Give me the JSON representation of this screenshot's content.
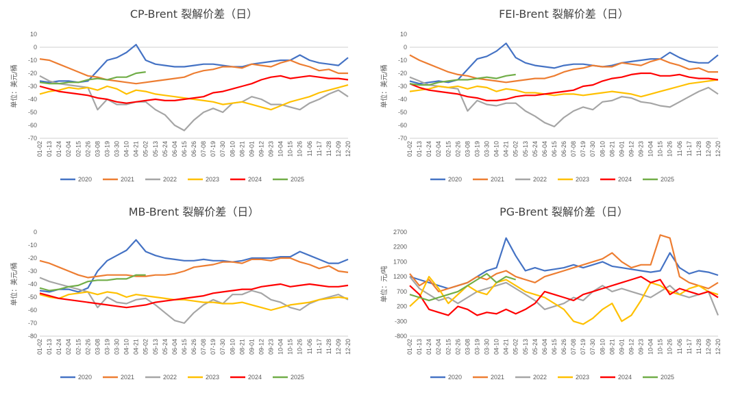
{
  "colors": {
    "2020": "#4472C4",
    "2021": "#ED7D31",
    "2022": "#A5A5A5",
    "2023": "#FFC000",
    "2024": "#FF0000",
    "2025": "#70AD47",
    "grid": "#D9D9D9",
    "axis": "#BFBFBF"
  },
  "legend": [
    "2020",
    "2021",
    "2022",
    "2023",
    "2024",
    "2025"
  ],
  "x_ticks": [
    "01-02",
    "01-13",
    "01-24",
    "02-04",
    "02-15",
    "02-26",
    "03-08",
    "03-19",
    "03-30",
    "04-10",
    "04-21",
    "05-02",
    "05-13",
    "05-24",
    "06-04",
    "06-15",
    "06-26",
    "07-08",
    "07-19",
    "07-30",
    "08-10",
    "08-21",
    "09-01",
    "09-12",
    "09-23",
    "10-04",
    "10-15",
    "10-26",
    "11-06",
    "11-17",
    "11-28",
    "12-09",
    "12-20"
  ],
  "chart_data": [
    {
      "type": "line",
      "title": "CP-Brent 裂解价差（日）",
      "ylabel": "单位：美元/桶",
      "ylim": [
        -70,
        10
      ],
      "yticks": [
        10,
        0,
        -10,
        -20,
        -30,
        -40,
        -50,
        -60,
        -70
      ],
      "categories_ref": "x_ticks",
      "series": [
        {
          "name": "2020",
          "values": [
            -26,
            -27,
            -26,
            -26,
            -27,
            -26,
            -18,
            -10,
            -8,
            -4,
            2,
            -10,
            -13,
            -14,
            -15,
            -15,
            -14,
            -13,
            -13,
            -14,
            -15,
            -15,
            -13,
            -12,
            -11,
            -10,
            -10,
            -6,
            -10,
            -12,
            -13,
            -14,
            -8
          ]
        },
        {
          "name": "2021",
          "values": [
            -9,
            -10,
            -13,
            -16,
            -19,
            -22,
            -23,
            -25,
            -26,
            -27,
            -28,
            -27,
            -26,
            -25,
            -24,
            -23,
            -20,
            -18,
            -17,
            -15,
            -15,
            -16,
            -13,
            -14,
            -15,
            -12,
            -10,
            -13,
            -15,
            -18,
            -17,
            -20,
            -20
          ]
        },
        {
          "name": "2022",
          "values": [
            -22,
            -26,
            -28,
            -29,
            -30,
            -31,
            -48,
            -40,
            -44,
            -44,
            -42,
            -42,
            -48,
            -52,
            -60,
            -64,
            -56,
            -50,
            -47,
            -50,
            -43,
            -42,
            -38,
            -40,
            -44,
            -44,
            -46,
            -48,
            -43,
            -40,
            -36,
            -33,
            -38
          ]
        },
        {
          "name": "2023",
          "values": [
            -36,
            -34,
            -33,
            -31,
            -32,
            -31,
            -33,
            -30,
            -32,
            -36,
            -33,
            -34,
            -36,
            -37,
            -38,
            -39,
            -40,
            -41,
            -42,
            -44,
            -43,
            -42,
            -44,
            -46,
            -48,
            -45,
            -42,
            -40,
            -38,
            -35,
            -33,
            -31,
            -29
          ]
        },
        {
          "name": "2024",
          "values": [
            -30,
            -32,
            -34,
            -35,
            -36,
            -37,
            -39,
            -40,
            -42,
            -43,
            -42,
            -41,
            -40,
            -41,
            -41,
            -40,
            -39,
            -38,
            -35,
            -34,
            -32,
            -30,
            -28,
            -25,
            -23,
            -22,
            -24,
            -23,
            -22,
            -23,
            -24,
            -24,
            -25
          ]
        },
        {
          "name": "2025",
          "values": [
            -27,
            -28,
            -28,
            -27,
            -27,
            -25,
            -24,
            -25,
            -23,
            -23,
            -20,
            -19
          ]
        }
      ]
    },
    {
      "type": "line",
      "title": "FEI-Brent 裂解价差（日）",
      "ylabel": "单位：美元/桶",
      "ylim": [
        -70,
        10
      ],
      "yticks": [
        10,
        0,
        -10,
        -20,
        -30,
        -40,
        -50,
        -60,
        -70
      ],
      "categories_ref": "x_ticks",
      "series": [
        {
          "name": "2020",
          "values": [
            -26,
            -28,
            -27,
            -26,
            -27,
            -25,
            -17,
            -9,
            -7,
            -3,
            3,
            -8,
            -12,
            -14,
            -15,
            -16,
            -14,
            -13,
            -13,
            -14,
            -15,
            -14,
            -12,
            -11,
            -10,
            -9,
            -9,
            -4,
            -8,
            -11,
            -12,
            -12,
            -6
          ]
        },
        {
          "name": "2021",
          "values": [
            -6,
            -10,
            -13,
            -16,
            -19,
            -21,
            -22,
            -24,
            -25,
            -26,
            -27,
            -26,
            -25,
            -24,
            -24,
            -22,
            -19,
            -17,
            -16,
            -14,
            -15,
            -15,
            -12,
            -13,
            -14,
            -11,
            -9,
            -12,
            -14,
            -17,
            -16,
            -19,
            -19
          ]
        },
        {
          "name": "2022",
          "values": [
            -23,
            -26,
            -29,
            -30,
            -31,
            -32,
            -49,
            -41,
            -44,
            -45,
            -43,
            -43,
            -49,
            -53,
            -58,
            -61,
            -54,
            -49,
            -46,
            -48,
            -42,
            -41,
            -38,
            -39,
            -42,
            -43,
            -45,
            -46,
            -42,
            -38,
            -34,
            -31,
            -36
          ]
        },
        {
          "name": "2023",
          "values": [
            -34,
            -33,
            -32,
            -30,
            -31,
            -30,
            -32,
            -30,
            -31,
            -34,
            -32,
            -33,
            -35,
            -35,
            -36,
            -37,
            -36,
            -36,
            -37,
            -36,
            -35,
            -34,
            -35,
            -36,
            -38,
            -36,
            -34,
            -32,
            -30,
            -28,
            -27,
            -26,
            -25
          ]
        },
        {
          "name": "2024",
          "values": [
            -28,
            -31,
            -33,
            -34,
            -35,
            -36,
            -38,
            -39,
            -41,
            -41,
            -40,
            -38,
            -37,
            -37,
            -36,
            -35,
            -34,
            -33,
            -30,
            -29,
            -26,
            -24,
            -23,
            -21,
            -20,
            -20,
            -22,
            -22,
            -21,
            -23,
            -24,
            -24,
            -25
          ]
        },
        {
          "name": "2025",
          "values": [
            -28,
            -29,
            -29,
            -27,
            -26,
            -25,
            -25,
            -24,
            -23,
            -24,
            -22,
            -21
          ]
        }
      ]
    },
    {
      "type": "line",
      "title": "MB-Brent 裂解价差（日）",
      "ylabel": "单位：美元/桶",
      "ylim": [
        -80,
        0
      ],
      "yticks": [
        0,
        -10,
        -20,
        -30,
        -40,
        -50,
        -60,
        -70,
        -80
      ],
      "categories_ref": "x_ticks",
      "series": [
        {
          "name": "2020",
          "values": [
            -45,
            -46,
            -44,
            -44,
            -46,
            -43,
            -30,
            -22,
            -18,
            -14,
            -6,
            -15,
            -18,
            -20,
            -21,
            -22,
            -22,
            -21,
            -22,
            -22,
            -23,
            -22,
            -20,
            -20,
            -20,
            -19,
            -19,
            -15,
            -18,
            -21,
            -24,
            -24,
            -21
          ]
        },
        {
          "name": "2021",
          "values": [
            -22,
            -24,
            -27,
            -30,
            -33,
            -35,
            -34,
            -33,
            -33,
            -33,
            -34,
            -34,
            -33,
            -33,
            -32,
            -30,
            -27,
            -26,
            -25,
            -23,
            -23,
            -24,
            -21,
            -21,
            -22,
            -20,
            -20,
            -23,
            -25,
            -28,
            -26,
            -30,
            -31
          ]
        },
        {
          "name": "2022",
          "values": [
            -35,
            -38,
            -40,
            -42,
            -44,
            -46,
            -58,
            -50,
            -54,
            -55,
            -52,
            -51,
            -56,
            -62,
            -68,
            -70,
            -62,
            -56,
            -52,
            -55,
            -48,
            -48,
            -45,
            -47,
            -52,
            -54,
            -58,
            -60,
            -55,
            -52,
            -50,
            -48,
            -52
          ]
        },
        {
          "name": "2023",
          "values": [
            -48,
            -50,
            -51,
            -48,
            -47,
            -46,
            -48,
            -46,
            -47,
            -50,
            -48,
            -49,
            -50,
            -51,
            -52,
            -52,
            -53,
            -54,
            -54,
            -55,
            -55,
            -54,
            -56,
            -58,
            -60,
            -58,
            -56,
            -55,
            -54,
            -52,
            -51,
            -50,
            -51
          ]
        },
        {
          "name": "2024",
          "values": [
            -47,
            -49,
            -51,
            -52,
            -53,
            -54,
            -55,
            -56,
            -57,
            -58,
            -57,
            -56,
            -54,
            -53,
            -52,
            -51,
            -50,
            -49,
            -47,
            -46,
            -45,
            -44,
            -44,
            -42,
            -41,
            -40,
            -42,
            -41,
            -40,
            -41,
            -42,
            -42,
            -41
          ]
        },
        {
          "name": "2025",
          "values": [
            -43,
            -45,
            -44,
            -42,
            -41,
            -38,
            -37,
            -37,
            -36,
            -36,
            -33,
            -33
          ]
        }
      ]
    },
    {
      "type": "line",
      "title": "PG-Brent 裂解价差（日）",
      "ylabel": "单位：元/吨",
      "ylim": [
        -800,
        2700
      ],
      "yticks": [
        2700,
        2200,
        1700,
        1200,
        700,
        200,
        -300,
        -800
      ],
      "categories_ref": "x_ticks",
      "series": [
        {
          "name": "2020",
          "values": [
            1200,
            1100,
            1000,
            900,
            800,
            900,
            1000,
            1200,
            1400,
            1500,
            2500,
            1900,
            1400,
            1500,
            1400,
            1450,
            1500,
            1600,
            1500,
            1600,
            1700,
            1550,
            1500,
            1450,
            1400,
            1350,
            1400,
            2000,
            1500,
            1300,
            1400,
            1350,
            1250
          ]
        },
        {
          "name": "2021",
          "values": [
            1300,
            900,
            1100,
            700,
            800,
            900,
            1000,
            1200,
            1100,
            1300,
            1400,
            1200,
            1100,
            1000,
            1200,
            1300,
            1400,
            1500,
            1600,
            1700,
            1800,
            2000,
            1700,
            1500,
            1600,
            1600,
            2600,
            2500,
            1200,
            1000,
            900,
            800,
            1000
          ]
        },
        {
          "name": "2022",
          "values": [
            1200,
            800,
            600,
            400,
            500,
            300,
            500,
            700,
            800,
            900,
            1000,
            800,
            600,
            400,
            100,
            200,
            300,
            500,
            400,
            700,
            900,
            700,
            800,
            700,
            600,
            500,
            700,
            900,
            600,
            500,
            600,
            700,
            -100
          ]
        },
        {
          "name": "2023",
          "values": [
            200,
            500,
            1200,
            800,
            300,
            600,
            900,
            700,
            600,
            1000,
            1100,
            900,
            700,
            600,
            500,
            300,
            100,
            -300,
            -400,
            -200,
            100,
            300,
            -300,
            -100,
            400,
            1000,
            900,
            700,
            600,
            800,
            900,
            700,
            600
          ]
        },
        {
          "name": "2024",
          "values": [
            900,
            600,
            100,
            0,
            -100,
            200,
            100,
            -100,
            0,
            -50,
            100,
            -50,
            100,
            300,
            700,
            600,
            500,
            400,
            600,
            700,
            800,
            900,
            1000,
            1100,
            1200,
            1000,
            1100,
            600,
            800,
            700,
            600,
            700,
            500
          ]
        },
        {
          "name": "2025",
          "values": [
            600,
            500,
            400,
            500,
            600,
            700,
            900,
            1100,
            1300,
            1000,
            1200,
            1100
          ]
        }
      ]
    }
  ]
}
